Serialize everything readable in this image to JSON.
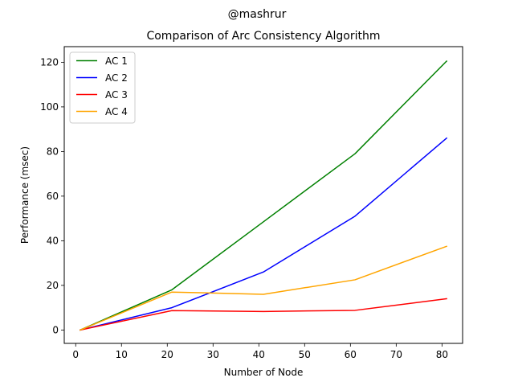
{
  "header": {
    "suptitle": "@mashrur"
  },
  "chart_data": {
    "type": "line",
    "title": "Comparison of Arc Consistency Algorithm",
    "xlabel": "Number of Node",
    "ylabel": "Performance (msec)",
    "x": [
      1,
      21,
      41,
      61,
      81
    ],
    "xlim": [
      -2.5,
      84.5
    ],
    "ylim": [
      -6,
      127
    ],
    "xticks": [
      0,
      10,
      20,
      30,
      40,
      50,
      60,
      70,
      80
    ],
    "yticks": [
      0,
      20,
      40,
      60,
      80,
      100,
      120
    ],
    "grid": false,
    "legend_position": "upper-left",
    "series": [
      {
        "name": "AC 1",
        "color": "#008000",
        "values": [
          0,
          18,
          48.5,
          79,
          120.5
        ]
      },
      {
        "name": "AC 2",
        "color": "#0000ff",
        "values": [
          0,
          10,
          26,
          51,
          86
        ]
      },
      {
        "name": "AC 3",
        "color": "#ff0000",
        "values": [
          0,
          8.7,
          8.3,
          8.8,
          14
        ]
      },
      {
        "name": "AC 4",
        "color": "#ffa500",
        "values": [
          0,
          17,
          16,
          22.5,
          37.5
        ]
      }
    ]
  }
}
